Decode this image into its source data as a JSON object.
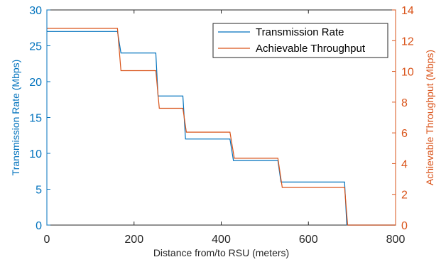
{
  "chart_data": {
    "type": "line",
    "xlabel": "Distance from/to RSU (meters)",
    "ylabel_left": "Transmission Rate (Mbps)",
    "ylabel_right": "Achievable Throughput (Mbps)",
    "xlim": [
      0,
      800
    ],
    "ylim_left": [
      0,
      30
    ],
    "ylim_right": [
      0,
      14
    ],
    "xticks": [
      "0",
      "200",
      "400",
      "600",
      "800"
    ],
    "yticks_left": [
      "0",
      "5",
      "10",
      "15",
      "20",
      "25",
      "30"
    ],
    "yticks_right": [
      "0",
      "2",
      "4",
      "6",
      "8",
      "10",
      "12",
      "14"
    ],
    "grid": false,
    "legend_position": "top-right",
    "colors": {
      "left_axis": "#0072BD",
      "right_axis": "#D95319"
    },
    "series": [
      {
        "name": "Transmission Rate",
        "axis": "left",
        "color": "#0072BD",
        "x": [
          0,
          162,
          170,
          250,
          255,
          312,
          318,
          420,
          428,
          530,
          537,
          683,
          688,
          800
        ],
        "y": [
          27,
          27,
          24,
          24,
          18,
          18,
          12,
          12,
          9,
          9,
          6,
          6,
          0,
          0
        ]
      },
      {
        "name": "Achievable Throughput",
        "axis": "right",
        "color": "#D95319",
        "x": [
          0,
          162,
          170,
          250,
          258,
          312,
          320,
          420,
          430,
          530,
          540,
          683,
          690,
          800
        ],
        "y": [
          12.8,
          12.8,
          10.05,
          10.05,
          7.6,
          7.6,
          6.05,
          6.05,
          4.35,
          4.35,
          2.45,
          2.45,
          0,
          0
        ]
      }
    ]
  }
}
